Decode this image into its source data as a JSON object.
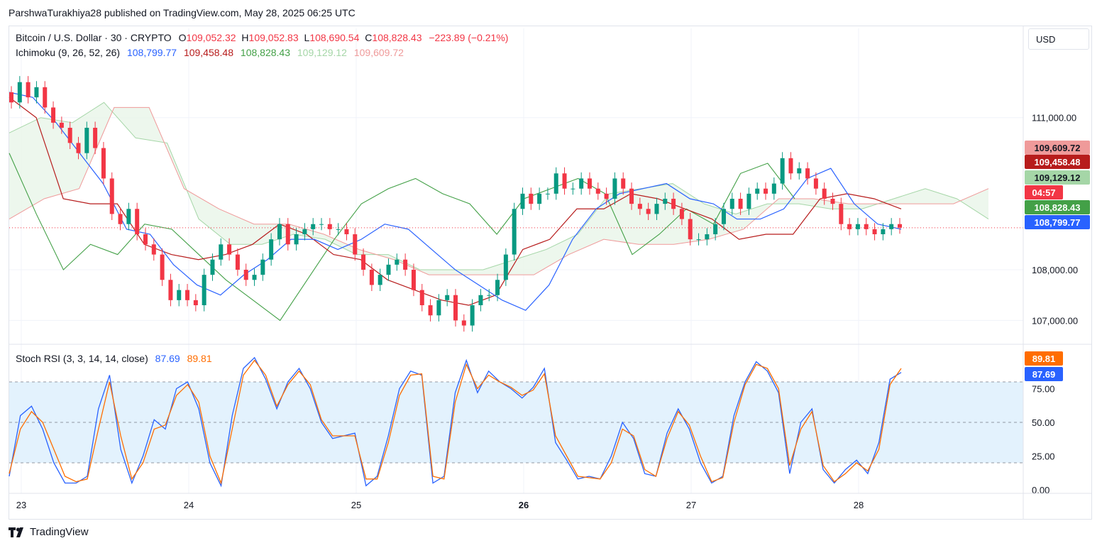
{
  "header": {
    "attribution": "ParshwaTurakhiya28 published on TradingView.com, May 28, 2025 06:25 UTC"
  },
  "legend": {
    "symbol": "Bitcoin / U.S. Dollar · 30 · CRYPTO",
    "o_label": "O",
    "o_value": "109,052.32",
    "h_label": "H",
    "h_value": "109,052.83",
    "l_label": "L",
    "l_value": "108,690.54",
    "c_label": "C",
    "c_value": "108,828.43",
    "change": "−223.89 (−0.21%)",
    "ichimoku_name": "Ichimoku (9, 26, 52, 26)",
    "ichimoku_values": [
      "108,799.77",
      "109,458.48",
      "108,828.43",
      "109,129.12",
      "109,609.72"
    ],
    "stoch_name": "Stoch RSI (3, 3, 14, 14, close)",
    "stoch_k": "87.69",
    "stoch_d": "89.81"
  },
  "currency_button": "USD",
  "footer": {
    "brand": "TradingView"
  },
  "colors": {
    "up": "#089981",
    "down": "#f23645",
    "tenkan": "#2962ff",
    "kijun": "#b71c1c",
    "chikou": "#43a047",
    "spanA": "#a5d6a7",
    "spanB": "#ef9a9a",
    "stoch_k": "#2962ff",
    "stoch_d": "#ff6d00",
    "rsi_band": "#e3f2fd"
  },
  "chart_data": [
    {
      "type": "candlestick",
      "title": "Bitcoin / U.S. Dollar · 30 · CRYPTO",
      "interval": "30",
      "x_tick_labels": [
        "23",
        "24",
        "25",
        "26",
        "27",
        "28"
      ],
      "y_tick_labels": [
        "111,000.00",
        "108,000.00",
        "107,000.00"
      ],
      "y_ticks": [
        111000,
        108000,
        107000
      ],
      "ylim": [
        106600,
        112200
      ],
      "current_price_line": 108828.43,
      "countdown": "04:57",
      "price_tags": [
        {
          "label": "109,609.72",
          "value": 109609.72,
          "color": "#ef9a9a",
          "text_color": "#131722"
        },
        {
          "label": "109,458.48",
          "value": 109458.48,
          "color": "#b71c1c",
          "text_color": "#ffffff"
        },
        {
          "label": "109,129.12",
          "value": 109129.12,
          "color": "#a5d6a7",
          "text_color": "#131722"
        },
        {
          "label": "108,828.43",
          "value": 108828.43,
          "color": "#43a047",
          "text_color": "#ffffff"
        },
        {
          "label": "108,799.77",
          "value": 108799.77,
          "color": "#2962ff",
          "text_color": "#ffffff"
        }
      ],
      "series": [
        {
          "name": "price (approx. close)",
          "values": [
            111300,
            111700,
            111400,
            111600,
            111200,
            110900,
            110800,
            110500,
            110300,
            110800,
            110400,
            109800,
            109100,
            108900,
            109200,
            108700,
            108500,
            108300,
            107800,
            107400,
            107600,
            107400,
            107300,
            107900,
            108200,
            108500,
            108300,
            108000,
            107800,
            107900,
            108200,
            108600,
            108900,
            108500,
            108700,
            108800,
            108900,
            108900,
            108800,
            108800,
            108700,
            108300,
            108000,
            107700,
            107900,
            108100,
            108200,
            108000,
            107600,
            107300,
            107100,
            107400,
            107500,
            107000,
            106900,
            107300,
            107500,
            107500,
            107800,
            108300,
            109200,
            109500,
            109300,
            109500,
            109500,
            109900,
            109600,
            109600,
            109800,
            109600,
            109500,
            109400,
            109800,
            109600,
            109300,
            109200,
            109100,
            109300,
            109400,
            109200,
            109000,
            108600,
            108600,
            108700,
            108900,
            109200,
            109400,
            109200,
            109500,
            109600,
            109500,
            109700,
            110200,
            109900,
            110000,
            109800,
            109600,
            109400,
            109300,
            108900,
            108800,
            108900,
            108800,
            108700,
            108800,
            108900,
            108830
          ]
        },
        {
          "name": "tenkan",
          "values": [
            111500,
            111400,
            110900,
            110300,
            109700,
            108800,
            108700,
            108100,
            107700,
            107500,
            107900,
            108200,
            108600,
            108600,
            108400,
            108600,
            108900,
            108800,
            108400,
            108000,
            107700,
            107400,
            107200,
            107700,
            108600,
            109200,
            109500,
            109600,
            109700,
            109400,
            109300,
            109000,
            109000,
            109200,
            109800,
            110000,
            109300,
            108900,
            108800
          ]
        },
        {
          "name": "kijun",
          "values": [
            111400,
            111000,
            109400,
            109300,
            109300,
            108500,
            108300,
            108200,
            108300,
            108500,
            108900,
            108700,
            108300,
            108200,
            107800,
            107600,
            107400,
            107300,
            107500,
            108400,
            108600,
            109200,
            109200,
            109500,
            109400,
            109200,
            109000,
            108600,
            108700,
            108700,
            109400,
            109500,
            109400,
            109200
          ]
        },
        {
          "name": "chikou",
          "values": [
            110300,
            109100,
            108000,
            108500,
            108300,
            108900,
            108800,
            108300,
            107800,
            107400,
            107000,
            107800,
            108600,
            109300,
            109600,
            109800,
            109500,
            109300,
            108700,
            109400,
            109600,
            109800,
            109500,
            108300,
            108700,
            109200,
            108900,
            109900,
            110100,
            109400
          ]
        },
        {
          "name": "senkou span A",
          "values": [
            110700,
            111000,
            110900,
            111300,
            110600,
            110500,
            109000,
            108500,
            108500,
            108700,
            108600,
            108300,
            108300,
            108000,
            108000,
            108000,
            108200,
            108400,
            108700,
            109500,
            109600,
            109700,
            109300,
            109100,
            109300,
            109300,
            109200,
            109200,
            109400,
            109600,
            109400,
            109000
          ]
        },
        {
          "name": "senkou span B",
          "values": [
            109000,
            109400,
            109600,
            111200,
            111200,
            109600,
            109200,
            108900,
            108900,
            108700,
            108400,
            108200,
            107900,
            107900,
            107900,
            107900,
            108300,
            108600,
            108500,
            108500,
            108600,
            108800,
            109400,
            109400,
            109300,
            109300,
            109300,
            109300,
            109600
          ]
        }
      ]
    },
    {
      "type": "line",
      "title": "Stoch RSI (3, 3, 14, 14, close)",
      "y_tick_labels": [
        "75.00",
        "50.00",
        "25.00",
        "0.00"
      ],
      "y_ticks": [
        75,
        50,
        25,
        0
      ],
      "ylim": [
        0,
        100
      ],
      "band": [
        20,
        80
      ],
      "value_tags": [
        {
          "label": "89.81",
          "value": 89.81,
          "color": "#ff6d00"
        },
        {
          "label": "87.69",
          "value": 87.69,
          "color": "#2962ff"
        }
      ],
      "series": [
        {
          "name": "K",
          "values": [
            10,
            55,
            62,
            45,
            20,
            5,
            5,
            10,
            60,
            85,
            30,
            5,
            25,
            52,
            45,
            75,
            80,
            60,
            20,
            3,
            55,
            90,
            98,
            82,
            60,
            80,
            90,
            75,
            50,
            38,
            40,
            42,
            3,
            10,
            40,
            75,
            88,
            85,
            5,
            10,
            72,
            96,
            72,
            88,
            80,
            75,
            68,
            76,
            90,
            35,
            22,
            8,
            10,
            8,
            25,
            50,
            38,
            12,
            10,
            42,
            60,
            45,
            20,
            5,
            10,
            55,
            80,
            95,
            88,
            72,
            12,
            50,
            60,
            15,
            5,
            15,
            22,
            12,
            35,
            82,
            87
          ]
        },
        {
          "name": "D",
          "values": [
            12,
            45,
            58,
            50,
            30,
            10,
            6,
            8,
            45,
            80,
            40,
            8,
            20,
            45,
            48,
            70,
            78,
            65,
            25,
            5,
            45,
            85,
            96,
            85,
            62,
            78,
            88,
            78,
            52,
            40,
            40,
            40,
            8,
            8,
            35,
            70,
            85,
            86,
            10,
            8,
            65,
            93,
            75,
            85,
            80,
            76,
            70,
            74,
            86,
            40,
            25,
            10,
            9,
            8,
            20,
            45,
            40,
            15,
            10,
            38,
            58,
            48,
            25,
            6,
            9,
            50,
            78,
            93,
            90,
            75,
            18,
            45,
            58,
            18,
            6,
            12,
            20,
            14,
            30,
            78,
            90
          ]
        }
      ]
    }
  ]
}
